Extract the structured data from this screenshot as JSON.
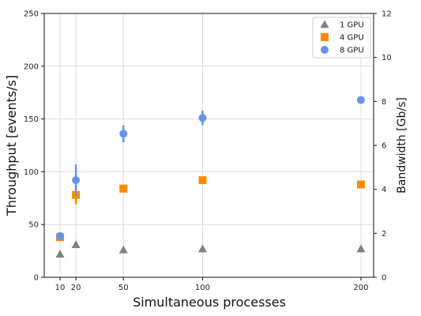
{
  "chart_data": {
    "type": "scatter",
    "xlabel": "Simultaneous processes",
    "ylabel": "Throughput [events/s]",
    "y2label": "Bandwidth [Gb/s]",
    "x_ticks": [
      "10",
      "20",
      "50",
      "100",
      "200"
    ],
    "y_ticks": [
      "0",
      "50",
      "100",
      "150",
      "200",
      "250"
    ],
    "y2_ticks": [
      "0",
      "2",
      "4",
      "6",
      "8",
      "10",
      "12"
    ],
    "xlim": [
      0,
      208
    ],
    "ylim": [
      0,
      250
    ],
    "y2lim": [
      0,
      12
    ],
    "grid": true,
    "legend_position": "top-right",
    "series": [
      {
        "name": "1 GPU",
        "marker": "triangle",
        "color": "#808080",
        "points": [
          {
            "x": 10,
            "y": 22,
            "err": 0
          },
          {
            "x": 20,
            "y": 31,
            "err": 0
          },
          {
            "x": 50,
            "y": 26,
            "err": 0
          },
          {
            "x": 100,
            "y": 27,
            "err": 0
          },
          {
            "x": 200,
            "y": 27,
            "err": 0
          }
        ]
      },
      {
        "name": "4 GPU",
        "marker": "square",
        "color": "#ff8c00",
        "points": [
          {
            "x": 10,
            "y": 38,
            "err": 0
          },
          {
            "x": 20,
            "y": 78,
            "err": 9
          },
          {
            "x": 50,
            "y": 84,
            "err": 0
          },
          {
            "x": 100,
            "y": 92,
            "err": 0
          },
          {
            "x": 200,
            "y": 88,
            "err": 0
          }
        ]
      },
      {
        "name": "8 GPU",
        "marker": "circle",
        "color": "#6495ed",
        "points": [
          {
            "x": 10,
            "y": 39,
            "err": 0
          },
          {
            "x": 20,
            "y": 92,
            "err": 15
          },
          {
            "x": 50,
            "y": 136,
            "err": 8
          },
          {
            "x": 100,
            "y": 151,
            "err": 7
          },
          {
            "x": 200,
            "y": 168,
            "err": 0
          }
        ]
      }
    ]
  }
}
